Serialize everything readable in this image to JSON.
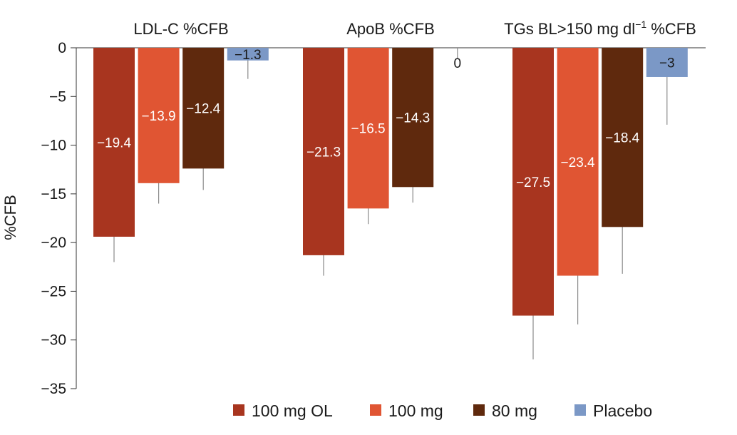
{
  "chart_data": {
    "type": "bar",
    "title": "",
    "xlabel": "",
    "ylabel": "%CFB",
    "ylim": [
      -35,
      0
    ],
    "yticks": [
      0,
      -5,
      -10,
      -15,
      -20,
      -25,
      -30,
      -35
    ],
    "ytick_labels": [
      "0",
      "−5",
      "−10",
      "−15",
      "−20",
      "−25",
      "−30",
      "−35"
    ],
    "categories": [
      "LDL-C %CFB",
      "ApoB %CFB",
      "TGs BL>150 mg dl⁻¹ %CFB"
    ],
    "category_labels": [
      {
        "main": "LDL-C %CFB"
      },
      {
        "main": "ApoB %CFB"
      },
      {
        "main": "TGs BL>150 mg dl",
        "sup": "−1",
        "rest": " %CFB"
      }
    ],
    "series": [
      {
        "name": "100 mg OL",
        "color": "#a8351f",
        "values": [
          -19.4,
          -21.3,
          -27.5
        ],
        "labels": [
          "−19.4",
          "−21.3",
          "−27.5"
        ],
        "error_low": [
          -22.0,
          -23.4,
          -32.0
        ]
      },
      {
        "name": "100 mg",
        "color": "#e05533",
        "values": [
          -13.9,
          -16.5,
          -23.4
        ],
        "labels": [
          "−13.9",
          "−16.5",
          "−23.4"
        ],
        "error_low": [
          -16.0,
          -18.1,
          -28.4
        ]
      },
      {
        "name": "80 mg",
        "color": "#5f290d",
        "values": [
          -12.4,
          -14.3,
          -18.4
        ],
        "labels": [
          "−12.4",
          "−14.3",
          "−18.4"
        ],
        "error_low": [
          -14.6,
          -15.9,
          -23.2
        ]
      },
      {
        "name": "Placebo",
        "color": "#7b98c6",
        "values": [
          -1.3,
          0,
          -3
        ],
        "labels": [
          "−1.3",
          "0",
          "−3"
        ],
        "error_low": [
          -3.2,
          -1.1,
          -7.9
        ]
      }
    ],
    "legend": {
      "position": "bottom-right",
      "entries": [
        "100 mg OL",
        "100 mg",
        "80 mg",
        "Placebo"
      ]
    }
  }
}
